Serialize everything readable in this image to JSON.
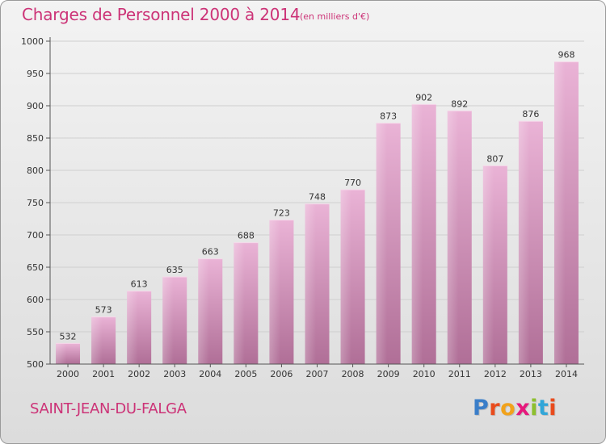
{
  "title": "Charges de Personnel 2000 à 2014",
  "subtitle": "(en milliers d'€)",
  "commune": "SAINT-JEAN-DU-FALGA",
  "logo": {
    "letters": [
      "P",
      "r",
      "o",
      "x",
      "i",
      "t",
      "i"
    ],
    "colors": [
      "#3a7ec9",
      "#e94b1c",
      "#f1a21b",
      "#e6187c",
      "#8dbf2e",
      "#32a6d8",
      "#e94b1c"
    ]
  },
  "colors": {
    "title": "#cc3377",
    "bar_light": "#eab3d6",
    "bar_dark": "#b06f97"
  },
  "chart_data": {
    "type": "bar",
    "title": "Charges de Personnel 2000 à 2014",
    "subtitle": "(en milliers d'€)",
    "xlabel": "",
    "ylabel": "",
    "categories": [
      "2000",
      "2001",
      "2002",
      "2003",
      "2004",
      "2005",
      "2006",
      "2007",
      "2008",
      "2009",
      "2010",
      "2011",
      "2012",
      "2013",
      "2014"
    ],
    "values": [
      532,
      573,
      613,
      635,
      663,
      688,
      723,
      748,
      770,
      873,
      902,
      892,
      807,
      876,
      968
    ],
    "ylim": [
      500,
      1000
    ],
    "yticks": [
      500,
      550,
      600,
      650,
      700,
      750,
      800,
      850,
      900,
      950,
      1000
    ],
    "grid": true
  }
}
